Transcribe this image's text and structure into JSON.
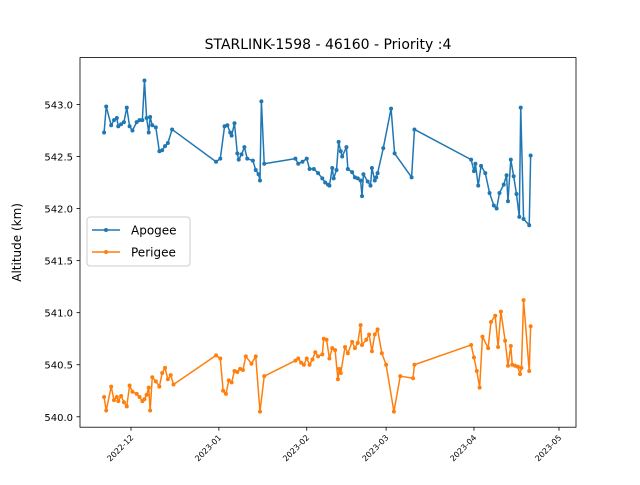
{
  "chart_data": {
    "type": "line",
    "title": "STARLINK-1598 - 46160 - Priority :4",
    "xlabel": "",
    "ylabel": "Altitude (km)",
    "xlim": [
      "2022-11-13",
      "2023-05-07"
    ],
    "ylim": [
      539.9,
      543.45
    ],
    "grid": false,
    "legend": {
      "position": "center-left"
    },
    "x_ticks": [
      {
        "date": "2022-12-01",
        "label": "2022-12"
      },
      {
        "date": "2023-01-01",
        "label": "2023-01"
      },
      {
        "date": "2023-02-01",
        "label": "2023-02"
      },
      {
        "date": "2023-03-01",
        "label": "2023-03"
      },
      {
        "date": "2023-04-01",
        "label": "2023-04"
      },
      {
        "date": "2023-05-01",
        "label": "2023-05"
      }
    ],
    "y_ticks": [
      540.0,
      540.5,
      541.0,
      541.5,
      542.0,
      542.5,
      543.0
    ],
    "y_tick_labels": [
      "540.0",
      "540.5",
      "541.0",
      "541.5",
      "542.0",
      "542.5",
      "543.0"
    ],
    "series": [
      {
        "name": "Apogee",
        "color": "#1f77b4",
        "points": [
          [
            "2022-11-21T12:00",
            542.73
          ],
          [
            "2022-11-22T06:00",
            542.98
          ],
          [
            "2022-11-24T00:00",
            542.8
          ],
          [
            "2022-11-25T00:00",
            542.85
          ],
          [
            "2022-11-26T00:00",
            542.87
          ],
          [
            "2022-11-26T12:00",
            542.79
          ],
          [
            "2022-11-27T12:00",
            542.81
          ],
          [
            "2022-11-28T12:00",
            542.83
          ],
          [
            "2022-11-29T12:00",
            542.97
          ],
          [
            "2022-11-30T12:00",
            542.79
          ],
          [
            "2022-12-01T12:00",
            542.75
          ],
          [
            "2022-12-03T00:00",
            542.83
          ],
          [
            "2022-12-04T00:00",
            542.85
          ],
          [
            "2022-12-05T00:00",
            542.85
          ],
          [
            "2022-12-05T18:00",
            543.23
          ],
          [
            "2022-12-06T12:00",
            542.87
          ],
          [
            "2022-12-07T06:00",
            542.73
          ],
          [
            "2022-12-07T18:00",
            542.88
          ],
          [
            "2022-12-08T12:00",
            542.8
          ],
          [
            "2022-12-09T18:00",
            542.78
          ],
          [
            "2022-12-11T00:00",
            542.55
          ],
          [
            "2022-12-12T00:00",
            542.56
          ],
          [
            "2022-12-13T00:00",
            542.6
          ],
          [
            "2022-12-14T00:00",
            542.63
          ],
          [
            "2022-12-15T12:00",
            542.76
          ],
          [
            "2022-12-31T00:00",
            542.45
          ],
          [
            "2023-01-01T12:00",
            542.48
          ],
          [
            "2023-01-03T00:00",
            542.79
          ],
          [
            "2023-01-04T00:00",
            542.8
          ],
          [
            "2023-01-05T00:00",
            542.73
          ],
          [
            "2023-01-05T12:00",
            542.7
          ],
          [
            "2023-01-06T12:00",
            542.82
          ],
          [
            "2023-01-07T12:00",
            542.53
          ],
          [
            "2023-01-08T00:00",
            542.47
          ],
          [
            "2023-01-09T00:00",
            542.52
          ],
          [
            "2023-01-10T00:00",
            542.59
          ],
          [
            "2023-01-11T00:00",
            542.48
          ],
          [
            "2023-01-13T00:00",
            542.46
          ],
          [
            "2023-01-14T00:00",
            542.37
          ],
          [
            "2023-01-15T00:00",
            542.33
          ],
          [
            "2023-01-15T12:00",
            542.27
          ],
          [
            "2023-01-16T00:00",
            543.03
          ],
          [
            "2023-01-17T00:00",
            542.43
          ],
          [
            "2023-01-28T00:00",
            542.48
          ],
          [
            "2023-01-29T00:00",
            542.43
          ],
          [
            "2023-01-30T12:00",
            542.45
          ],
          [
            "2023-02-01T00:00",
            542.48
          ],
          [
            "2023-02-02T00:00",
            542.38
          ],
          [
            "2023-02-03T12:00",
            542.38
          ],
          [
            "2023-02-05T00:00",
            542.34
          ],
          [
            "2023-02-06T12:00",
            542.29
          ],
          [
            "2023-02-07T12:00",
            542.25
          ],
          [
            "2023-02-08T12:00",
            542.23
          ],
          [
            "2023-02-09T00:00",
            542.22
          ],
          [
            "2023-02-10T00:00",
            542.39
          ],
          [
            "2023-02-10T12:00",
            542.29
          ],
          [
            "2023-02-11T12:00",
            542.37
          ],
          [
            "2023-02-12T06:00",
            542.64
          ],
          [
            "2023-02-13T00:00",
            542.55
          ],
          [
            "2023-02-13T12:00",
            542.5
          ],
          [
            "2023-02-15T00:00",
            542.59
          ],
          [
            "2023-02-15T12:00",
            542.38
          ],
          [
            "2023-02-17T00:00",
            542.35
          ],
          [
            "2023-02-18T00:00",
            542.3
          ],
          [
            "2023-02-19T00:00",
            542.29
          ],
          [
            "2023-02-20T00:00",
            542.27
          ],
          [
            "2023-02-20T12:00",
            542.12
          ],
          [
            "2023-02-21T00:00",
            542.33
          ],
          [
            "2023-02-22T12:00",
            542.26
          ],
          [
            "2023-02-23T12:00",
            542.22
          ],
          [
            "2023-02-24T00:00",
            542.39
          ],
          [
            "2023-02-25T00:00",
            542.27
          ],
          [
            "2023-02-25T12:00",
            542.3
          ],
          [
            "2023-02-26T00:00",
            542.34
          ],
          [
            "2023-02-28T00:00",
            542.58
          ],
          [
            "2023-03-02T18:00",
            542.96
          ],
          [
            "2023-03-04T00:00",
            542.53
          ],
          [
            "2023-03-10T00:00",
            542.3
          ],
          [
            "2023-03-11T00:00",
            542.76
          ],
          [
            "2023-03-31T00:00",
            542.47
          ],
          [
            "2023-04-01T00:00",
            542.36
          ],
          [
            "2023-04-01T12:00",
            542.43
          ],
          [
            "2023-04-02T12:00",
            542.22
          ],
          [
            "2023-04-03T12:00",
            542.41
          ],
          [
            "2023-04-05T00:00",
            542.34
          ],
          [
            "2023-04-06T12:00",
            542.15
          ],
          [
            "2023-04-08T00:00",
            542.03
          ],
          [
            "2023-04-09T00:00",
            542.0
          ],
          [
            "2023-04-10T00:00",
            542.15
          ],
          [
            "2023-04-11T12:00",
            542.23
          ],
          [
            "2023-04-12T12:00",
            542.32
          ],
          [
            "2023-04-13T00:00",
            542.07
          ],
          [
            "2023-04-14T00:00",
            542.47
          ],
          [
            "2023-04-15T00:00",
            542.31
          ],
          [
            "2023-04-16T00:00",
            542.14
          ],
          [
            "2023-04-17T00:00",
            541.92
          ],
          [
            "2023-04-17T12:00",
            542.97
          ],
          [
            "2023-04-18T12:00",
            541.9
          ],
          [
            "2023-04-20T12:00",
            541.84
          ],
          [
            "2023-04-21T00:00",
            542.51
          ]
        ]
      },
      {
        "name": "Perigee",
        "color": "#ff7f0e",
        "points": [
          [
            "2022-11-21T12:00",
            540.19
          ],
          [
            "2022-11-22T06:00",
            540.06
          ],
          [
            "2022-11-24T00:00",
            540.29
          ],
          [
            "2022-11-25T00:00",
            540.16
          ],
          [
            "2022-11-26T00:00",
            540.19
          ],
          [
            "2022-11-26T12:00",
            540.15
          ],
          [
            "2022-11-27T12:00",
            540.2
          ],
          [
            "2022-11-28T12:00",
            540.14
          ],
          [
            "2022-11-29T12:00",
            540.1
          ],
          [
            "2022-11-30T12:00",
            540.3
          ],
          [
            "2022-12-01T12:00",
            540.24
          ],
          [
            "2022-12-03T00:00",
            540.22
          ],
          [
            "2022-12-04T00:00",
            540.19
          ],
          [
            "2022-12-05T00:00",
            540.15
          ],
          [
            "2022-12-05T18:00",
            540.17
          ],
          [
            "2022-12-06T12:00",
            540.21
          ],
          [
            "2022-12-07T06:00",
            540.28
          ],
          [
            "2022-12-07T18:00",
            540.06
          ],
          [
            "2022-12-08T12:00",
            540.38
          ],
          [
            "2022-12-09T18:00",
            540.34
          ],
          [
            "2022-12-11T00:00",
            540.29
          ],
          [
            "2022-12-12T00:00",
            540.42
          ],
          [
            "2022-12-13T00:00",
            540.47
          ],
          [
            "2022-12-14T00:00",
            540.36
          ],
          [
            "2022-12-15T00:00",
            540.4
          ],
          [
            "2022-12-16T00:00",
            540.31
          ],
          [
            "2022-12-31T00:00",
            540.59
          ],
          [
            "2023-01-01T12:00",
            540.56
          ],
          [
            "2023-01-02T12:00",
            540.25
          ],
          [
            "2023-01-03T12:00",
            540.22
          ],
          [
            "2023-01-04T12:00",
            540.35
          ],
          [
            "2023-01-05T12:00",
            540.33
          ],
          [
            "2023-01-06T12:00",
            540.44
          ],
          [
            "2023-01-07T12:00",
            540.43
          ],
          [
            "2023-01-08T12:00",
            540.46
          ],
          [
            "2023-01-09T12:00",
            540.45
          ],
          [
            "2023-01-10T12:00",
            540.58
          ],
          [
            "2023-01-12T12:00",
            540.51
          ],
          [
            "2023-01-14T00:00",
            540.58
          ],
          [
            "2023-01-15T12:00",
            540.05
          ],
          [
            "2023-01-17T00:00",
            540.39
          ],
          [
            "2023-01-28T00:00",
            540.54
          ],
          [
            "2023-01-29T00:00",
            540.56
          ],
          [
            "2023-01-30T00:00",
            540.52
          ],
          [
            "2023-01-31T00:00",
            540.5
          ],
          [
            "2023-02-01T00:00",
            540.56
          ],
          [
            "2023-02-02T00:00",
            540.5
          ],
          [
            "2023-02-03T00:00",
            540.55
          ],
          [
            "2023-02-04T00:00",
            540.62
          ],
          [
            "2023-02-05T00:00",
            540.58
          ],
          [
            "2023-02-06T12:00",
            540.6
          ],
          [
            "2023-02-07T00:00",
            540.75
          ],
          [
            "2023-02-08T00:00",
            540.74
          ],
          [
            "2023-02-09T00:00",
            540.56
          ],
          [
            "2023-02-10T00:00",
            540.66
          ],
          [
            "2023-02-11T00:00",
            540.64
          ],
          [
            "2023-02-12T00:00",
            540.36
          ],
          [
            "2023-02-12T12:00",
            540.46
          ],
          [
            "2023-02-13T00:00",
            540.42
          ],
          [
            "2023-02-14T12:00",
            540.67
          ],
          [
            "2023-02-15T12:00",
            540.61
          ],
          [
            "2023-02-17T00:00",
            540.72
          ],
          [
            "2023-02-18T00:00",
            540.66
          ],
          [
            "2023-02-19T00:00",
            540.71
          ],
          [
            "2023-02-20T00:00",
            540.88
          ],
          [
            "2023-02-20T12:00",
            540.69
          ],
          [
            "2023-02-22T00:00",
            540.74
          ],
          [
            "2023-02-23T00:00",
            540.79
          ],
          [
            "2023-02-24T00:00",
            540.63
          ],
          [
            "2023-02-25T00:00",
            540.79
          ],
          [
            "2023-02-26T00:00",
            540.84
          ],
          [
            "2023-02-27T12:00",
            540.61
          ],
          [
            "2023-03-01T00:00",
            540.5
          ],
          [
            "2023-03-03T18:00",
            540.05
          ],
          [
            "2023-03-06T00:00",
            540.39
          ],
          [
            "2023-03-10T12:00",
            540.37
          ],
          [
            "2023-03-11T00:00",
            540.5
          ],
          [
            "2023-03-31T00:00",
            540.69
          ],
          [
            "2023-04-01T00:00",
            540.57
          ],
          [
            "2023-04-02T00:00",
            540.44
          ],
          [
            "2023-04-03T00:00",
            540.28
          ],
          [
            "2023-04-04T00:00",
            540.77
          ],
          [
            "2023-04-06T00:00",
            540.66
          ],
          [
            "2023-04-07T00:00",
            540.91
          ],
          [
            "2023-04-08T12:00",
            540.97
          ],
          [
            "2023-04-09T12:00",
            540.67
          ],
          [
            "2023-04-10T12:00",
            541.01
          ],
          [
            "2023-04-12T00:00",
            540.73
          ],
          [
            "2023-04-13T00:00",
            540.49
          ],
          [
            "2023-04-14T00:00",
            540.68
          ],
          [
            "2023-04-14T12:00",
            540.5
          ],
          [
            "2023-04-15T12:00",
            540.49
          ],
          [
            "2023-04-16T12:00",
            540.48
          ],
          [
            "2023-04-17T06:00",
            540.41
          ],
          [
            "2023-04-17T18:00",
            540.47
          ],
          [
            "2023-04-18T12:00",
            541.12
          ],
          [
            "2023-04-20T12:00",
            540.44
          ],
          [
            "2023-04-21T00:00",
            540.87
          ]
        ]
      }
    ]
  }
}
